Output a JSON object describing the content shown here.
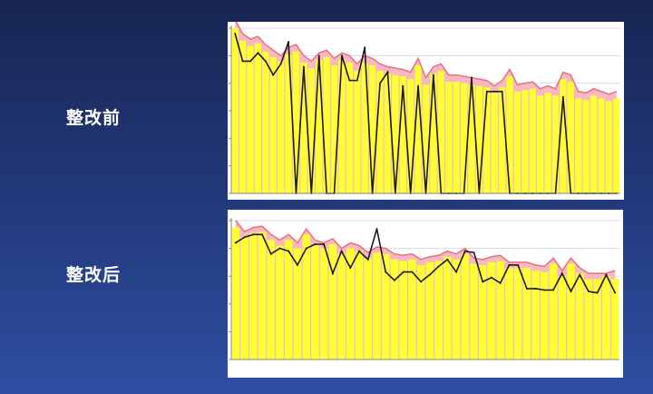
{
  "slide": {
    "label_before": "整改前",
    "label_after": "整改后"
  },
  "colors": {
    "bar": "#ffff33",
    "total_area": "#f7b8c4",
    "total_line": "#e8707e",
    "series_line": "#1a1a1a",
    "grid": "#d8d8e0"
  },
  "chart_data": [
    {
      "type": "bar",
      "title": "",
      "grid": true,
      "ylim": [
        0,
        6
      ],
      "bars": [
        6.0,
        5.55,
        5.35,
        5.45,
        5.15,
        4.95,
        4.8,
        5.05,
        5.15,
        4.75,
        4.55,
        4.85,
        4.95,
        4.65,
        4.85,
        4.75,
        4.45,
        4.75,
        4.65,
        4.45,
        4.35,
        4.3,
        4.25,
        4.15,
        4.65,
        3.95,
        4.35,
        4.45,
        4.05,
        4.05,
        4.0,
        3.95,
        3.9,
        3.85,
        3.65,
        3.85,
        4.25,
        3.7,
        3.75,
        3.8,
        3.55,
        3.65,
        3.55,
        4.15,
        4.05,
        3.45,
        3.4,
        3.55,
        3.45,
        3.35,
        3.45
      ],
      "total_line": [
        6.3,
        5.8,
        5.6,
        5.7,
        5.4,
        5.2,
        5.0,
        5.3,
        5.4,
        5.0,
        4.8,
        5.1,
        5.2,
        4.9,
        5.1,
        5.0,
        4.7,
        5.0,
        4.9,
        4.7,
        4.6,
        4.55,
        4.5,
        4.4,
        4.9,
        4.2,
        4.6,
        4.7,
        4.3,
        4.3,
        4.25,
        4.2,
        4.15,
        4.1,
        3.9,
        4.1,
        4.5,
        3.95,
        4.0,
        4.05,
        3.8,
        3.9,
        3.8,
        4.4,
        4.3,
        3.7,
        3.65,
        3.8,
        3.7,
        3.6,
        3.7
      ],
      "line": [
        5.8,
        4.8,
        4.8,
        5.1,
        4.8,
        4.3,
        4.7,
        5.5,
        0,
        4.6,
        0,
        5.0,
        0,
        0,
        5.0,
        4.1,
        4.1,
        5.3,
        0,
        4.0,
        4.4,
        0,
        3.9,
        0,
        3.9,
        0,
        4.3,
        0,
        0,
        0,
        0,
        4.2,
        0,
        3.7,
        3.7,
        3.7,
        0,
        0,
        0,
        0,
        0,
        0,
        0,
        3.5,
        0,
        0,
        0,
        0,
        0,
        0,
        0
      ]
    },
    {
      "type": "bar",
      "title": "",
      "grid": true,
      "ylim": [
        0,
        5
      ],
      "bars": [
        4.75,
        4.4,
        4.55,
        4.6,
        4.3,
        4.1,
        4.3,
        4.0,
        4.5,
        4.1,
        4.0,
        4.15,
        3.8,
        4.0,
        3.9,
        3.65,
        3.85,
        3.8,
        3.6,
        3.55,
        3.6,
        3.4,
        3.5,
        3.55,
        3.7,
        3.6,
        3.8,
        3.45,
        3.4,
        3.5,
        3.55,
        3.3,
        3.3,
        3.3,
        3.2,
        3.15,
        3.45,
        3.0,
        3.45,
        3.1,
        2.9,
        2.9,
        3.0,
        2.9
      ],
      "total_line": [
        5.0,
        4.6,
        4.75,
        4.8,
        4.5,
        4.3,
        4.5,
        4.2,
        4.7,
        4.3,
        4.2,
        4.35,
        4.0,
        4.2,
        4.1,
        3.85,
        4.05,
        4.0,
        3.8,
        3.75,
        3.8,
        3.6,
        3.7,
        3.75,
        3.9,
        3.8,
        4.0,
        3.65,
        3.6,
        3.7,
        3.75,
        3.5,
        3.5,
        3.5,
        3.4,
        3.35,
        3.65,
        3.2,
        3.65,
        3.3,
        3.1,
        3.1,
        3.1,
        3.2
      ],
      "line": [
        4.2,
        4.4,
        4.5,
        4.5,
        3.8,
        4.0,
        3.9,
        3.4,
        4.0,
        4.15,
        4.15,
        3.1,
        3.9,
        3.3,
        3.9,
        3.6,
        4.7,
        3.15,
        2.85,
        3.15,
        3.15,
        2.8,
        3.05,
        3.35,
        3.6,
        3.15,
        3.9,
        3.85,
        2.8,
        2.95,
        2.75,
        3.4,
        3.4,
        2.55,
        2.55,
        2.5,
        2.5,
        3.1,
        2.45,
        3.05,
        2.45,
        2.4,
        3.05,
        2.4
      ]
    }
  ]
}
